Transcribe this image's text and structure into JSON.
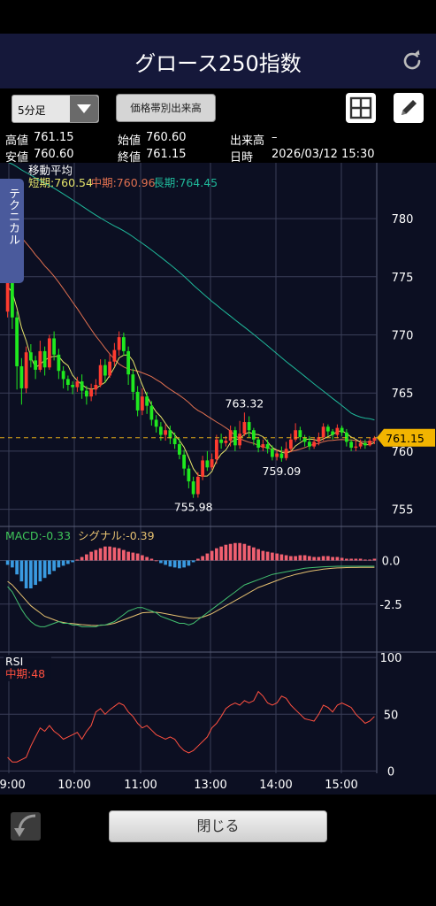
{
  "header": {
    "title": "グロース250指数",
    "refresh_icon": "refresh-icon"
  },
  "toolbar": {
    "interval_select": "5分足",
    "volume_button": "価格帯別出来高",
    "grid_icon": "grid-icon",
    "pencil_icon": "pencil-icon"
  },
  "info": {
    "high_label": "高値",
    "high_value": "761.15",
    "open_label": "始値",
    "open_value": "760.60",
    "volume_label": "出来高",
    "volume_value": "–",
    "low_label": "安値",
    "low_value": "760.60",
    "close_label": "終値",
    "close_value": "761.15",
    "datetime_label": "日時",
    "datetime_value": "2026/03/12 15:30"
  },
  "tech_tab": "テクニカル",
  "footer": {
    "close_label": "閉じる",
    "back_icon": "back-arrow-icon"
  },
  "colors": {
    "up": "#ff3b2f",
    "down": "#1fe81f",
    "short_ma": "#e5e36a",
    "mid_ma": "#e07050",
    "long_ma": "#1fb89a",
    "macd": "#43c070",
    "signal": "#e5c070",
    "rsi": "#ff5040"
  },
  "chart_data": [
    {
      "type": "candlestick",
      "title": "移動平均",
      "legend": [
        {
          "name": "短期:760.54",
          "color": "#e5e36a"
        },
        {
          "name": "中期:760.96",
          "color": "#e07050"
        },
        {
          "name": "長期:764.45",
          "color": "#1fb89a"
        }
      ],
      "y_ticks": [
        "780",
        "775",
        "770",
        "765",
        "760",
        "755"
      ],
      "ylim": [
        753.6,
        784.8
      ],
      "x_ticks": [
        "09:00",
        "10:00",
        "11:00",
        "13:00",
        "14:00",
        "15:00"
      ],
      "current_price": "761.15",
      "annotations": [
        {
          "label": "763.32",
          "value": 763.32,
          "index": 51
        },
        {
          "label": "755.98",
          "value": 755.98,
          "index": 40
        },
        {
          "label": "759.09",
          "value": 759.09,
          "index": 59
        }
      ],
      "candles": [
        [
          772.0,
          774.8,
          777.5,
          771.5
        ],
        [
          774.8,
          771.5,
          775.5,
          770.5
        ],
        [
          771.5,
          767.3,
          772.0,
          765.3
        ],
        [
          767.3,
          765.4,
          768.0,
          764.0
        ],
        [
          765.4,
          768.5,
          769.0,
          765.0
        ],
        [
          768.5,
          767.8,
          769.2,
          767.2
        ],
        [
          767.8,
          767.0,
          768.2,
          766.2
        ],
        [
          767.0,
          768.6,
          769.5,
          766.8
        ],
        [
          768.6,
          767.2,
          769.0,
          766.5
        ],
        [
          767.2,
          769.7,
          770.0,
          767.0
        ],
        [
          769.7,
          768.3,
          770.3,
          767.8
        ],
        [
          768.3,
          766.9,
          768.8,
          766.2
        ],
        [
          766.9,
          766.2,
          767.3,
          765.4
        ],
        [
          766.2,
          765.7,
          766.5,
          765.2
        ],
        [
          765.7,
          765.5,
          766.0,
          764.9
        ],
        [
          765.5,
          766.0,
          766.4,
          765.1
        ],
        [
          766.0,
          765.2,
          766.6,
          764.5
        ],
        [
          765.2,
          764.7,
          765.6,
          764.0
        ],
        [
          764.7,
          765.3,
          765.8,
          764.3
        ],
        [
          765.3,
          765.7,
          766.2,
          764.8
        ],
        [
          765.7,
          767.4,
          767.9,
          765.5
        ],
        [
          767.4,
          766.5,
          767.9,
          765.9
        ],
        [
          766.5,
          767.7,
          768.4,
          766.3
        ],
        [
          767.7,
          768.7,
          769.3,
          767.3
        ],
        [
          768.7,
          769.8,
          770.3,
          768.2
        ],
        [
          769.8,
          768.6,
          770.2,
          768.2
        ],
        [
          768.6,
          766.6,
          769.0,
          765.7
        ],
        [
          766.6,
          765.1,
          767.1,
          764.4
        ],
        [
          765.1,
          763.5,
          765.6,
          763.0
        ],
        [
          763.5,
          764.7,
          765.4,
          763.1
        ],
        [
          764.7,
          763.9,
          765.1,
          763.2
        ],
        [
          763.9,
          762.7,
          764.3,
          762.2
        ],
        [
          762.7,
          762.1,
          763.1,
          761.6
        ],
        [
          762.1,
          761.4,
          762.5,
          760.9
        ],
        [
          761.4,
          761.8,
          762.3,
          760.9
        ],
        [
          761.8,
          761.1,
          762.2,
          760.6
        ],
        [
          761.1,
          760.6,
          761.6,
          760.2
        ],
        [
          760.6,
          759.7,
          761.1,
          759.3
        ],
        [
          759.7,
          758.5,
          760.1,
          757.9
        ],
        [
          758.5,
          757.4,
          758.8,
          756.8
        ],
        [
          757.4,
          756.3,
          757.8,
          755.98
        ],
        [
          756.3,
          757.8,
          758.2,
          756.0
        ],
        [
          757.8,
          759.2,
          759.6,
          757.5
        ],
        [
          759.2,
          758.6,
          760.0,
          758.3
        ],
        [
          758.6,
          759.3,
          759.8,
          758.4
        ],
        [
          759.3,
          761.0,
          761.4,
          758.9
        ],
        [
          761.0,
          760.7,
          761.5,
          760.2
        ],
        [
          760.7,
          760.9,
          761.3,
          760.4
        ],
        [
          760.9,
          761.8,
          762.2,
          760.4
        ],
        [
          761.8,
          760.5,
          762.1,
          760.0
        ],
        [
          760.5,
          761.5,
          762.6,
          760.2
        ],
        [
          761.5,
          762.5,
          763.32,
          761.3
        ],
        [
          762.5,
          761.8,
          763.0,
          761.2
        ],
        [
          761.8,
          761.0,
          762.0,
          760.5
        ],
        [
          761.0,
          760.3,
          761.2,
          759.9
        ],
        [
          760.3,
          760.6,
          761.0,
          760.0
        ],
        [
          760.6,
          760.2,
          761.0,
          759.8
        ],
        [
          760.2,
          759.5,
          760.5,
          759.2
        ],
        [
          759.5,
          759.8,
          760.1,
          759.2
        ],
        [
          759.8,
          759.4,
          760.4,
          759.09
        ],
        [
          759.4,
          760.2,
          760.8,
          759.2
        ],
        [
          760.2,
          761.0,
          761.5,
          759.9
        ],
        [
          761.0,
          761.8,
          762.4,
          760.8
        ],
        [
          761.8,
          761.2,
          762.1,
          760.9
        ],
        [
          761.2,
          760.8,
          761.4,
          760.4
        ],
        [
          760.8,
          760.4,
          761.3,
          760.1
        ],
        [
          760.4,
          760.8,
          761.1,
          760.2
        ],
        [
          760.8,
          761.2,
          761.6,
          760.5
        ],
        [
          761.2,
          762.1,
          762.4,
          760.9
        ],
        [
          762.1,
          761.7,
          762.3,
          761.3
        ],
        [
          761.7,
          761.4,
          761.9,
          761.0
        ],
        [
          761.4,
          762.0,
          762.3,
          761.1
        ],
        [
          762.0,
          761.6,
          762.2,
          761.3
        ],
        [
          761.6,
          760.8,
          761.9,
          760.4
        ],
        [
          760.8,
          760.3,
          761.0,
          760.0
        ],
        [
          760.3,
          760.4,
          760.9,
          760.0
        ],
        [
          760.4,
          760.7,
          761.0,
          760.2
        ],
        [
          760.7,
          760.5,
          761.0,
          760.2
        ],
        [
          760.5,
          760.9,
          761.2,
          760.4
        ],
        [
          760.9,
          761.15,
          761.3,
          760.6
        ]
      ]
    },
    {
      "type": "bar+line",
      "legend": [
        {
          "name": "MACD:-0.33",
          "color": "#3fc65a"
        },
        {
          "name": "シグナル:-0.39",
          "color": "#e5c070"
        }
      ],
      "y_ticks": [
        "0.0",
        "-2.5"
      ],
      "ylim": [
        -5.2,
        1.9
      ],
      "histogram": [
        -0.25,
        -0.4,
        -0.8,
        -1.2,
        -1.6,
        -1.6,
        -1.4,
        -1.2,
        -1.0,
        -0.8,
        -0.6,
        -0.4,
        -0.3,
        -0.2,
        -0.1,
        0.05,
        0.2,
        0.35,
        0.5,
        0.6,
        0.7,
        0.8,
        0.8,
        0.75,
        0.7,
        0.6,
        0.5,
        0.45,
        0.4,
        0.3,
        0.2,
        0.1,
        0.0,
        -0.15,
        -0.25,
        -0.35,
        -0.4,
        -0.45,
        -0.4,
        -0.3,
        -0.1,
        0.1,
        0.25,
        0.4,
        0.55,
        0.7,
        0.8,
        0.9,
        0.95,
        1.0,
        1.0,
        0.95,
        0.85,
        0.75,
        0.65,
        0.55,
        0.5,
        0.45,
        0.4,
        0.35,
        0.3,
        0.25,
        0.25,
        0.3,
        0.3,
        0.25,
        0.2,
        0.2,
        0.25,
        0.25,
        0.2,
        0.2,
        0.15,
        0.1,
        0.1,
        0.1,
        0.1,
        0.05,
        0.05,
        0.1
      ],
      "macd": [
        -1.5,
        -1.8,
        -2.3,
        -2.8,
        -3.2,
        -3.5,
        -3.7,
        -3.8,
        -3.8,
        -3.7,
        -3.6,
        -3.5,
        -3.6,
        -3.6,
        -3.7,
        -3.7,
        -3.8,
        -3.8,
        -3.8,
        -3.8,
        -3.7,
        -3.7,
        -3.6,
        -3.5,
        -3.3,
        -3.1,
        -2.9,
        -2.8,
        -2.7,
        -2.7,
        -2.8,
        -2.9,
        -3.0,
        -3.2,
        -3.3,
        -3.4,
        -3.5,
        -3.6,
        -3.6,
        -3.7,
        -3.6,
        -3.4,
        -3.2,
        -3.0,
        -2.8,
        -2.6,
        -2.4,
        -2.2,
        -2.0,
        -1.8,
        -1.6,
        -1.4,
        -1.3,
        -1.2,
        -1.1,
        -1.0,
        -0.9,
        -0.8,
        -0.75,
        -0.7,
        -0.65,
        -0.6,
        -0.55,
        -0.5,
        -0.45,
        -0.42,
        -0.4,
        -0.38,
        -0.36,
        -0.35,
        -0.34,
        -0.33,
        -0.33,
        -0.33,
        -0.33,
        -0.33,
        -0.33,
        -0.33,
        -0.33,
        -0.33
      ],
      "signal": [
        -1.2,
        -1.4,
        -1.7,
        -2.0,
        -2.3,
        -2.6,
        -2.8,
        -3.0,
        -3.2,
        -3.3,
        -3.4,
        -3.5,
        -3.55,
        -3.6,
        -3.62,
        -3.65,
        -3.68,
        -3.7,
        -3.72,
        -3.73,
        -3.72,
        -3.7,
        -3.66,
        -3.6,
        -3.5,
        -3.4,
        -3.3,
        -3.2,
        -3.1,
        -3.0,
        -2.98,
        -2.97,
        -2.97,
        -3.0,
        -3.05,
        -3.1,
        -3.15,
        -3.2,
        -3.25,
        -3.3,
        -3.32,
        -3.3,
        -3.25,
        -3.15,
        -3.05,
        -2.9,
        -2.75,
        -2.6,
        -2.45,
        -2.3,
        -2.15,
        -2.0,
        -1.85,
        -1.7,
        -1.55,
        -1.45,
        -1.35,
        -1.25,
        -1.15,
        -1.05,
        -0.95,
        -0.88,
        -0.8,
        -0.74,
        -0.68,
        -0.62,
        -0.58,
        -0.54,
        -0.5,
        -0.47,
        -0.45,
        -0.43,
        -0.42,
        -0.41,
        -0.4,
        -0.4,
        -0.39,
        -0.39,
        -0.39,
        -0.39
      ]
    },
    {
      "type": "line",
      "title": "RSI",
      "legend": [
        {
          "name": "中期:48",
          "color": "#ff5040"
        }
      ],
      "y_ticks": [
        "100",
        "50",
        "0"
      ],
      "ylim": [
        -2,
        104
      ],
      "values": [
        12,
        8,
        8,
        10,
        12,
        22,
        30,
        38,
        35,
        40,
        35,
        32,
        28,
        30,
        32,
        34,
        28,
        35,
        40,
        52,
        55,
        50,
        54,
        57,
        60,
        58,
        52,
        48,
        42,
        38,
        40,
        36,
        32,
        30,
        28,
        30,
        28,
        22,
        18,
        16,
        18,
        22,
        26,
        30,
        38,
        42,
        48,
        55,
        58,
        60,
        58,
        62,
        60,
        62,
        70,
        66,
        60,
        58,
        60,
        66,
        64,
        58,
        54,
        50,
        46,
        45,
        44,
        50,
        58,
        56,
        52,
        58,
        60,
        58,
        56,
        50,
        46,
        42,
        44,
        48
      ]
    }
  ]
}
